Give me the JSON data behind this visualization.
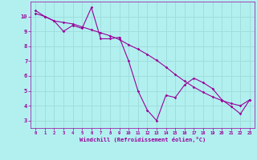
{
  "xlabel": "Windchill (Refroidissement éolien,°C)",
  "bg_color": "#b2f0f0",
  "line_color": "#990099",
  "grid_color": "#a0dede",
  "x_data": [
    0,
    1,
    2,
    3,
    4,
    5,
    6,
    7,
    8,
    9,
    10,
    11,
    12,
    13,
    14,
    15,
    16,
    17,
    18,
    19,
    20,
    21,
    22,
    23
  ],
  "y_zigzag": [
    10.2,
    10.0,
    9.7,
    9.0,
    9.4,
    9.2,
    10.6,
    8.5,
    8.5,
    8.6,
    7.0,
    5.0,
    3.7,
    3.0,
    4.7,
    4.55,
    5.4,
    5.85,
    5.55,
    5.15,
    4.4,
    3.95,
    3.45,
    4.4
  ],
  "y_trend": [
    10.4,
    10.0,
    9.7,
    9.6,
    9.5,
    9.3,
    9.1,
    8.9,
    8.7,
    8.45,
    8.1,
    7.8,
    7.45,
    7.05,
    6.6,
    6.1,
    5.65,
    5.25,
    4.9,
    4.6,
    4.35,
    4.15,
    4.0,
    4.4
  ],
  "xlim": [
    -0.5,
    23.5
  ],
  "ylim": [
    2.5,
    11.0
  ],
  "yticks": [
    3,
    4,
    5,
    6,
    7,
    8,
    9,
    10
  ],
  "xticks": [
    0,
    1,
    2,
    3,
    4,
    5,
    6,
    7,
    8,
    9,
    10,
    11,
    12,
    13,
    14,
    15,
    16,
    17,
    18,
    19,
    20,
    21,
    22,
    23
  ]
}
